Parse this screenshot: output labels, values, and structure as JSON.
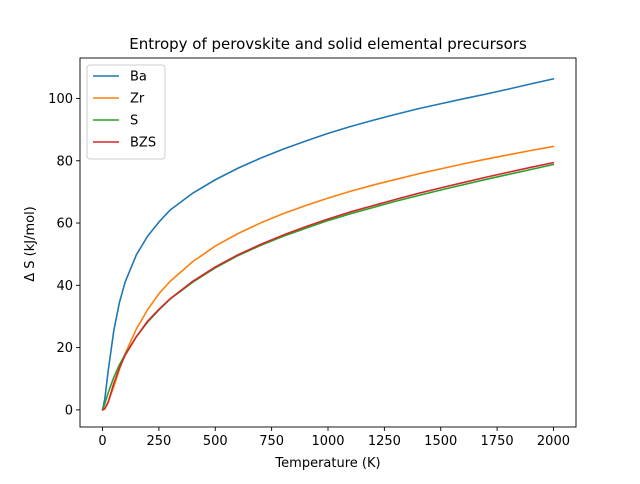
{
  "chart_data": {
    "type": "line",
    "title": "Entropy of perovskite and solid elemental precursors",
    "xlabel": "Temperature (K)",
    "ylabel": "Δ S (kJ/mol)",
    "xlim": [
      -100,
      2100
    ],
    "ylim": [
      -5.5,
      113
    ],
    "x_ticks": [
      0,
      250,
      500,
      750,
      1000,
      1250,
      1500,
      1750,
      2000
    ],
    "x_tick_labels": [
      "0",
      "250",
      "500",
      "750",
      "1000",
      "1250",
      "1500",
      "1750",
      "2000"
    ],
    "y_ticks": [
      0,
      20,
      40,
      60,
      80,
      100
    ],
    "y_tick_labels": [
      "0",
      "20",
      "40",
      "60",
      "80",
      "100"
    ],
    "grid": false,
    "legend_position": "top-left",
    "x": [
      0,
      10,
      25,
      50,
      75,
      100,
      150,
      200,
      250,
      300,
      400,
      500,
      600,
      700,
      800,
      900,
      1000,
      1100,
      1200,
      1300,
      1400,
      1500,
      1600,
      1700,
      1800,
      1900,
      2000
    ],
    "series": [
      {
        "name": "Ba",
        "color": "#1f77b4",
        "values": [
          0,
          3.5,
          12.5,
          25.5,
          34.5,
          41,
          49.8,
          55.8,
          60.3,
          64.2,
          69.6,
          73.9,
          77.6,
          80.8,
          83.7,
          86.3,
          88.8,
          91.0,
          93.0,
          94.9,
          96.7,
          98.3,
          99.9,
          101.4,
          103.0,
          104.7,
          106.3
        ]
      },
      {
        "name": "Zr",
        "color": "#ff7f0e",
        "values": [
          0,
          0.5,
          2.5,
          7.5,
          13,
          18,
          26,
          32.2,
          37.3,
          41.3,
          47.6,
          52.6,
          56.6,
          60.0,
          63.0,
          65.6,
          68.0,
          70.2,
          72.2,
          74.0,
          75.8,
          77.4,
          79.0,
          80.5,
          81.9,
          83.3,
          84.6
        ]
      },
      {
        "name": "S",
        "color": "#2ca02c",
        "values": [
          0,
          2.0,
          5.5,
          10.5,
          14.5,
          17.8,
          23.5,
          28.2,
          32.1,
          35.6,
          41.0,
          45.6,
          49.5,
          52.8,
          55.7,
          58.3,
          60.8,
          63.0,
          65.0,
          67.0,
          68.8,
          70.6,
          72.3,
          74.0,
          75.6,
          77.2,
          78.8
        ]
      },
      {
        "name": "BZS",
        "color": "#d62728",
        "values": [
          0,
          0.3,
          2.5,
          8.5,
          13.5,
          17.5,
          23.5,
          28.5,
          32.3,
          35.7,
          41.3,
          45.9,
          49.8,
          53.1,
          56.1,
          58.8,
          61.3,
          63.6,
          65.6,
          67.6,
          69.5,
          71.3,
          73.0,
          74.7,
          76.3,
          77.9,
          79.4
        ]
      }
    ]
  }
}
